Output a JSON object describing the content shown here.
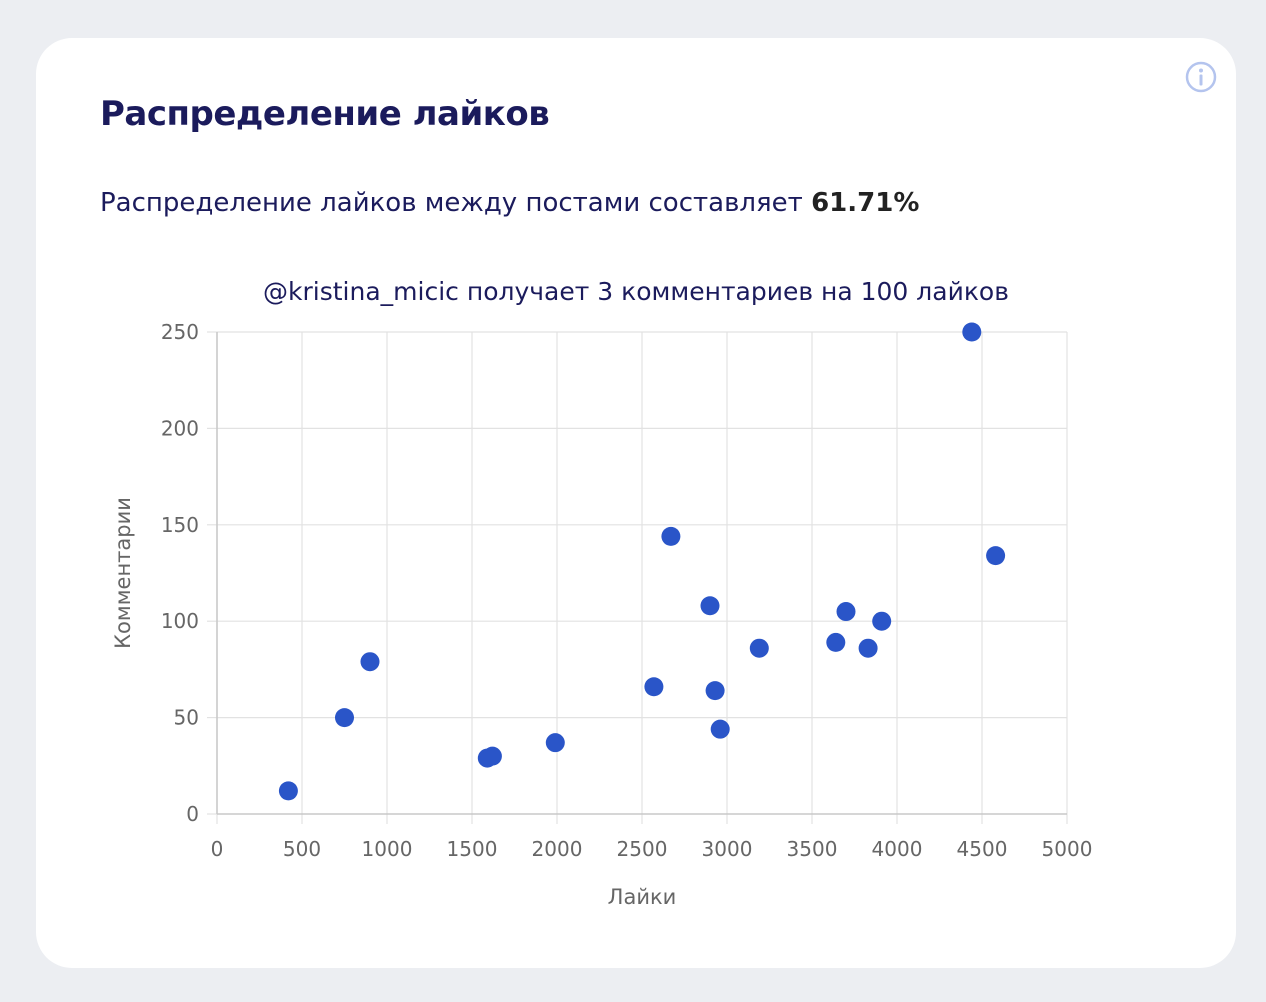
{
  "card": {
    "title": "Распределение лайков",
    "summary_prefix": "Распределение лайков между постами составляет",
    "summary_value": "61.71%",
    "info_icon": "info-circle-icon"
  },
  "colors": {
    "title": "#1b1b5c",
    "point": "#2a55c8",
    "grid": "#e2e2e2",
    "axis_text": "#666666"
  },
  "chart_data": {
    "type": "scatter",
    "title": "@kristina_micic получает 3 комментариев на 100 лайков",
    "xlabel": "Лайки",
    "ylabel": "Комментарии",
    "xlim": [
      0,
      5000
    ],
    "ylim": [
      0,
      250
    ],
    "xticks": [
      0,
      500,
      1000,
      1500,
      2000,
      2500,
      3000,
      3500,
      4000,
      4500,
      5000
    ],
    "yticks": [
      0,
      50,
      100,
      150,
      200,
      250
    ],
    "grid": true,
    "points": [
      {
        "x": 420,
        "y": 12
      },
      {
        "x": 750,
        "y": 50
      },
      {
        "x": 900,
        "y": 79
      },
      {
        "x": 1590,
        "y": 29
      },
      {
        "x": 1620,
        "y": 30
      },
      {
        "x": 1990,
        "y": 37
      },
      {
        "x": 2570,
        "y": 66
      },
      {
        "x": 2670,
        "y": 144
      },
      {
        "x": 2900,
        "y": 108
      },
      {
        "x": 2930,
        "y": 64
      },
      {
        "x": 2960,
        "y": 44
      },
      {
        "x": 3190,
        "y": 86
      },
      {
        "x": 3640,
        "y": 89
      },
      {
        "x": 3700,
        "y": 105
      },
      {
        "x": 3830,
        "y": 86
      },
      {
        "x": 3910,
        "y": 100
      },
      {
        "x": 4440,
        "y": 250
      },
      {
        "x": 4580,
        "y": 134
      }
    ]
  }
}
